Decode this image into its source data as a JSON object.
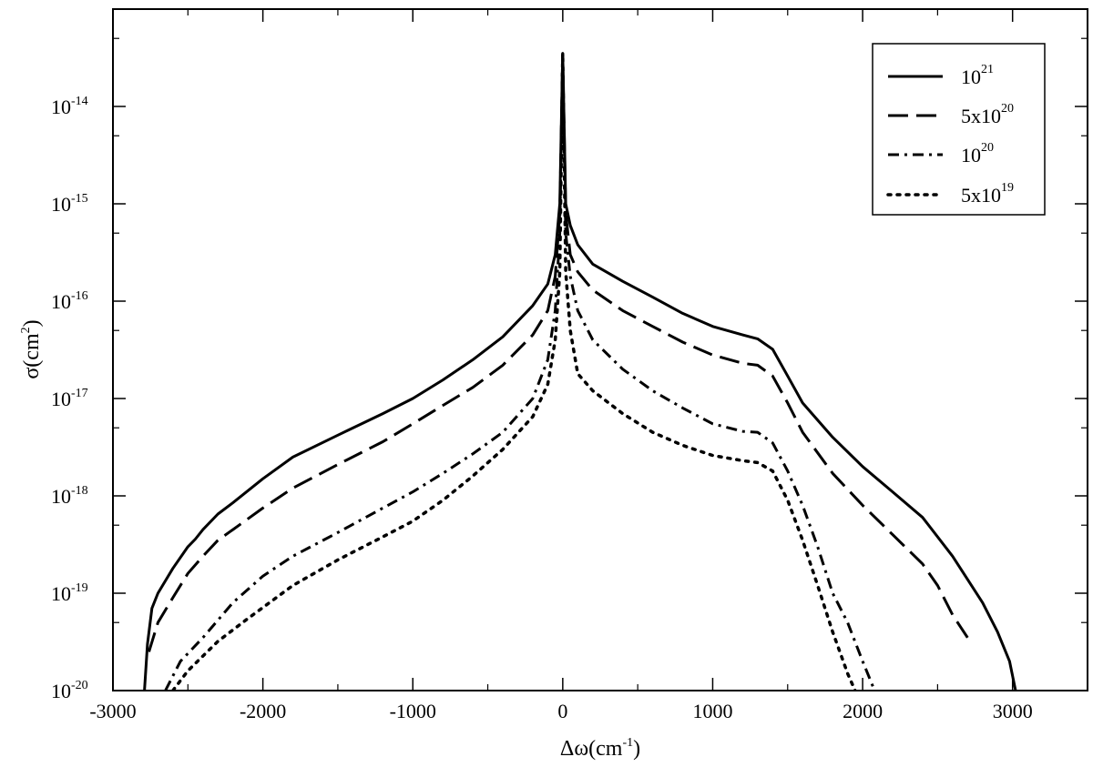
{
  "chart_data": {
    "type": "line",
    "title": "",
    "xlabel": {
      "base": "Δω(cm",
      "sup": "-1",
      "tail": ")"
    },
    "ylabel": {
      "base": "σ(cm",
      "sup": "2",
      "tail": ")"
    },
    "xlim": [
      -3000,
      3500
    ],
    "ylim": [
      1e-20,
      1e-13
    ],
    "yscale": "log",
    "grid": false,
    "legend_position": "top-right",
    "x_ticks": [
      {
        "value": -3000,
        "label": "-3000"
      },
      {
        "value": -2000,
        "label": "-2000"
      },
      {
        "value": -1000,
        "label": "-1000"
      },
      {
        "value": 0,
        "label": "0"
      },
      {
        "value": 1000,
        "label": "1000"
      },
      {
        "value": 2000,
        "label": "2000"
      },
      {
        "value": 3000,
        "label": "3000"
      }
    ],
    "y_ticks": [
      {
        "value": 1e-20,
        "base": "10",
        "exp": "-20"
      },
      {
        "value": 1e-19,
        "base": "10",
        "exp": "-19"
      },
      {
        "value": 1e-18,
        "base": "10",
        "exp": "-18"
      },
      {
        "value": 1e-17,
        "base": "10",
        "exp": "-17"
      },
      {
        "value": 1e-16,
        "base": "10",
        "exp": "-16"
      },
      {
        "value": 1e-15,
        "base": "10",
        "exp": "-15"
      },
      {
        "value": 1e-14,
        "base": "10",
        "exp": "-14"
      }
    ],
    "series": [
      {
        "name": {
          "base": "10",
          "exp": "21"
        },
        "style": "solid",
        "color": "#000000",
        "points": [
          [
            -2790,
            1e-20
          ],
          [
            -2770,
            3e-20
          ],
          [
            -2740,
            7e-20
          ],
          [
            -2700,
            1e-19
          ],
          [
            -2600,
            1.8e-19
          ],
          [
            -2500,
            3e-19
          ],
          [
            -2450,
            3.6e-19
          ],
          [
            -2400,
            4.5e-19
          ],
          [
            -2300,
            6.5e-19
          ],
          [
            -2200,
            8.5e-19
          ],
          [
            -2000,
            1.5e-18
          ],
          [
            -1800,
            2.5e-18
          ],
          [
            -1500,
            4.2e-18
          ],
          [
            -1200,
            7e-18
          ],
          [
            -1000,
            1e-17
          ],
          [
            -800,
            1.55e-17
          ],
          [
            -600,
            2.5e-17
          ],
          [
            -400,
            4.3e-17
          ],
          [
            -200,
            9e-17
          ],
          [
            -100,
            1.5e-16
          ],
          [
            -50,
            3e-16
          ],
          [
            -20,
            1e-15
          ],
          [
            0,
            3.5e-14
          ],
          [
            20,
            1e-15
          ],
          [
            50,
            6e-16
          ],
          [
            100,
            3.8e-16
          ],
          [
            200,
            2.4e-16
          ],
          [
            400,
            1.6e-16
          ],
          [
            600,
            1.1e-16
          ],
          [
            800,
            7.5e-17
          ],
          [
            1000,
            5.5e-17
          ],
          [
            1200,
            4.5e-17
          ],
          [
            1300,
            4.1e-17
          ],
          [
            1400,
            3.2e-17
          ],
          [
            1500,
            1.7e-17
          ],
          [
            1600,
            9e-18
          ],
          [
            1800,
            4e-18
          ],
          [
            2000,
            2e-18
          ],
          [
            2200,
            1.1e-18
          ],
          [
            2400,
            6e-19
          ],
          [
            2600,
            2.4e-19
          ],
          [
            2800,
            8e-20
          ],
          [
            2900,
            4e-20
          ],
          [
            2980,
            2e-20
          ],
          [
            3020,
            1e-20
          ]
        ]
      },
      {
        "name": {
          "base": "5x10",
          "exp": "20"
        },
        "style": "dash",
        "color": "#000000",
        "points": [
          [
            -2760,
            2.5e-20
          ],
          [
            -2700,
            5e-20
          ],
          [
            -2600,
            9e-20
          ],
          [
            -2500,
            1.6e-19
          ],
          [
            -2400,
            2.4e-19
          ],
          [
            -2300,
            3.5e-19
          ],
          [
            -2200,
            4.5e-19
          ],
          [
            -2000,
            7.5e-19
          ],
          [
            -1800,
            1.2e-18
          ],
          [
            -1500,
            2.1e-18
          ],
          [
            -1200,
            3.6e-18
          ],
          [
            -1000,
            5.5e-18
          ],
          [
            -800,
            8.5e-18
          ],
          [
            -600,
            1.3e-17
          ],
          [
            -400,
            2.2e-17
          ],
          [
            -200,
            4.5e-17
          ],
          [
            -100,
            8e-17
          ],
          [
            -50,
            1.8e-16
          ],
          [
            -20,
            8e-16
          ],
          [
            0,
            3.5e-14
          ],
          [
            20,
            8e-16
          ],
          [
            50,
            3e-16
          ],
          [
            100,
            2e-16
          ],
          [
            200,
            1.3e-16
          ],
          [
            400,
            8e-17
          ],
          [
            600,
            5.5e-17
          ],
          [
            800,
            3.8e-17
          ],
          [
            1000,
            2.8e-17
          ],
          [
            1200,
            2.3e-17
          ],
          [
            1300,
            2.2e-17
          ],
          [
            1400,
            1.7e-17
          ],
          [
            1500,
            9e-18
          ],
          [
            1600,
            4.5e-18
          ],
          [
            1800,
            1.7e-18
          ],
          [
            2000,
            8e-19
          ],
          [
            2200,
            4e-19
          ],
          [
            2400,
            2e-19
          ],
          [
            2500,
            1.2e-19
          ],
          [
            2600,
            6e-20
          ],
          [
            2700,
            3.5e-20
          ]
        ]
      },
      {
        "name": {
          "base": "10",
          "exp": "20"
        },
        "style": "dashdot",
        "color": "#000000",
        "points": [
          [
            -2650,
            1e-20
          ],
          [
            -2550,
            2e-20
          ],
          [
            -2400,
            3.5e-20
          ],
          [
            -2200,
            8e-20
          ],
          [
            -2000,
            1.5e-19
          ],
          [
            -1800,
            2.4e-19
          ],
          [
            -1500,
            4.2e-19
          ],
          [
            -1200,
            7.5e-19
          ],
          [
            -1000,
            1.1e-18
          ],
          [
            -800,
            1.7e-18
          ],
          [
            -600,
            2.7e-18
          ],
          [
            -400,
            4.5e-18
          ],
          [
            -200,
            1e-17
          ],
          [
            -100,
            2.5e-17
          ],
          [
            -50,
            8e-17
          ],
          [
            -20,
            5e-16
          ],
          [
            0,
            3.5e-14
          ],
          [
            20,
            5e-16
          ],
          [
            50,
            1.8e-16
          ],
          [
            100,
            8e-17
          ],
          [
            200,
            4e-17
          ],
          [
            400,
            2e-17
          ],
          [
            600,
            1.2e-17
          ],
          [
            800,
            8e-18
          ],
          [
            1000,
            5.5e-18
          ],
          [
            1200,
            4.6e-18
          ],
          [
            1300,
            4.5e-18
          ],
          [
            1400,
            3.5e-18
          ],
          [
            1500,
            1.8e-18
          ],
          [
            1600,
            8e-19
          ],
          [
            1700,
            3e-19
          ],
          [
            1800,
            1e-19
          ],
          [
            1900,
            5e-20
          ],
          [
            2000,
            2e-20
          ],
          [
            2080,
            1e-20
          ]
        ]
      },
      {
        "name": {
          "base": "5x10",
          "exp": "19"
        },
        "style": "dot",
        "color": "#000000",
        "points": [
          [
            -2600,
            1e-20
          ],
          [
            -2500,
            1.6e-20
          ],
          [
            -2300,
            3.2e-20
          ],
          [
            -2100,
            5.5e-20
          ],
          [
            -1800,
            1.2e-19
          ],
          [
            -1500,
            2.2e-19
          ],
          [
            -1200,
            3.8e-19
          ],
          [
            -1000,
            5.5e-19
          ],
          [
            -800,
            9e-19
          ],
          [
            -600,
            1.6e-18
          ],
          [
            -400,
            3e-18
          ],
          [
            -200,
            6.5e-18
          ],
          [
            -100,
            1.4e-17
          ],
          [
            -50,
            4e-17
          ],
          [
            -20,
            2e-16
          ],
          [
            0,
            3.5e-14
          ],
          [
            20,
            2e-16
          ],
          [
            50,
            5e-17
          ],
          [
            100,
            1.8e-17
          ],
          [
            200,
            1.2e-17
          ],
          [
            400,
            7e-18
          ],
          [
            600,
            4.5e-18
          ],
          [
            800,
            3.3e-18
          ],
          [
            1000,
            2.6e-18
          ],
          [
            1200,
            2.3e-18
          ],
          [
            1300,
            2.2e-18
          ],
          [
            1400,
            1.8e-18
          ],
          [
            1500,
            9e-19
          ],
          [
            1600,
            3.5e-19
          ],
          [
            1700,
            1.2e-19
          ],
          [
            1800,
            4e-20
          ],
          [
            1900,
            1.5e-20
          ],
          [
            1950,
            1e-20
          ]
        ]
      }
    ]
  }
}
